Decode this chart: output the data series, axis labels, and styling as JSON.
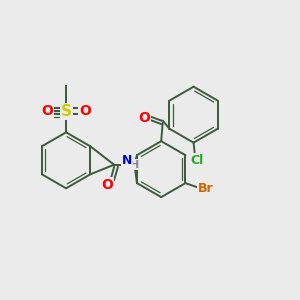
{
  "background_color": "#ebebeb",
  "bond_color": "#3d5a3d",
  "atom_colors": {
    "S": "#cccc00",
    "O": "#ff0000",
    "N": "#0000cc",
    "Cl": "#22aa22",
    "Br": "#cc6600",
    "C": "#3d5a3d",
    "H": "#888888"
  },
  "figsize": [
    3.0,
    3.0
  ],
  "dpi": 100
}
